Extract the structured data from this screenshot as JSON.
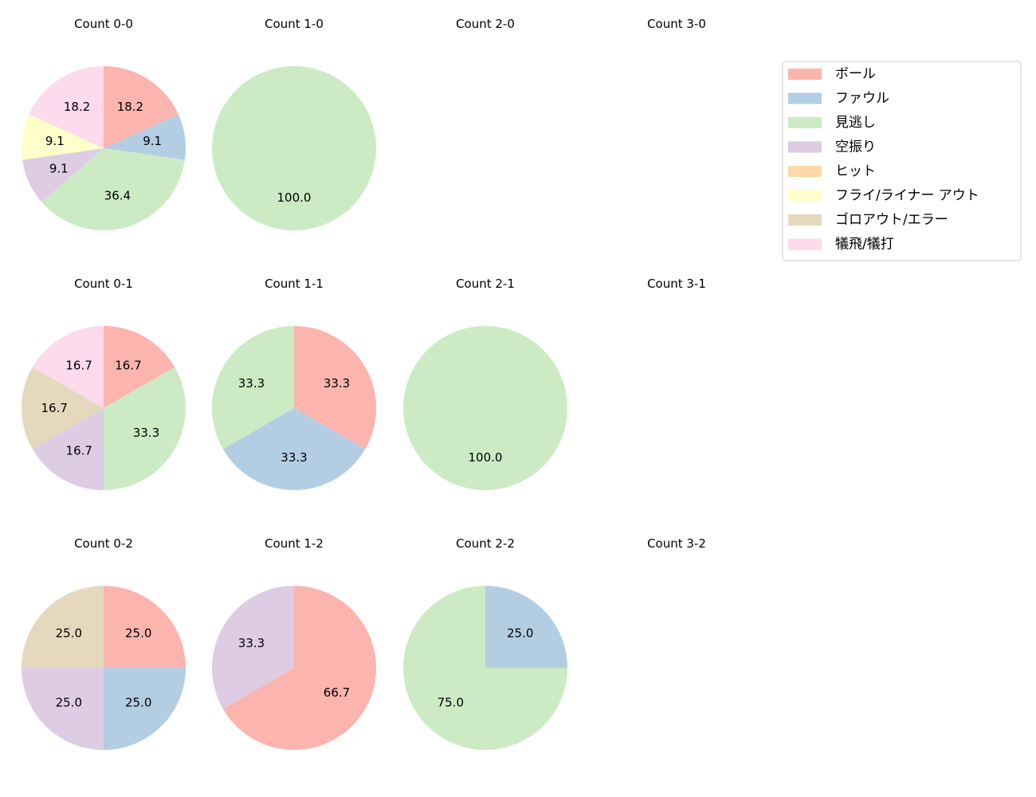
{
  "chart_data": {
    "type": "pie",
    "categories": [
      "ボール",
      "ファウル",
      "見逃し",
      "空振り",
      "ヒット",
      "フライ/ライナー アウト",
      "ゴロアウト/エラー",
      "犠飛/犠打"
    ],
    "colors": [
      "#fbb4ae",
      "#b3cde3",
      "#ccebc5",
      "#decbe4",
      "#fed9a6",
      "#ffffcc",
      "#e5d8bd",
      "#fddaec"
    ],
    "legend_position": "right",
    "start": "top",
    "direction": "clockwise",
    "pies": [
      {
        "title": "Count 0-0",
        "values": [
          18.2,
          9.1,
          36.4,
          9.1,
          0,
          9.1,
          0,
          18.2
        ]
      },
      {
        "title": "Count 1-0",
        "values": [
          0,
          0,
          100.0,
          0,
          0,
          0,
          0,
          0
        ]
      },
      {
        "title": "Count 2-0",
        "values": []
      },
      {
        "title": "Count 3-0",
        "values": []
      },
      {
        "title": "Count 0-1",
        "values": [
          16.7,
          0,
          33.3,
          16.7,
          0,
          0,
          16.7,
          16.7
        ]
      },
      {
        "title": "Count 1-1",
        "values": [
          33.3,
          33.3,
          33.3,
          0,
          0,
          0,
          0,
          0
        ]
      },
      {
        "title": "Count 2-1",
        "values": [
          0,
          0,
          100.0,
          0,
          0,
          0,
          0,
          0
        ]
      },
      {
        "title": "Count 3-1",
        "values": []
      },
      {
        "title": "Count 0-2",
        "values": [
          25.0,
          25.0,
          0,
          25.0,
          0,
          0,
          25.0,
          0
        ]
      },
      {
        "title": "Count 1-2",
        "values": [
          66.7,
          0,
          0,
          33.3,
          0,
          0,
          0,
          0
        ]
      },
      {
        "title": "Count 2-2",
        "values": [
          0,
          25.0,
          75.0,
          0,
          0,
          0,
          0,
          0
        ]
      },
      {
        "title": "Count 3-2",
        "values": []
      }
    ]
  }
}
